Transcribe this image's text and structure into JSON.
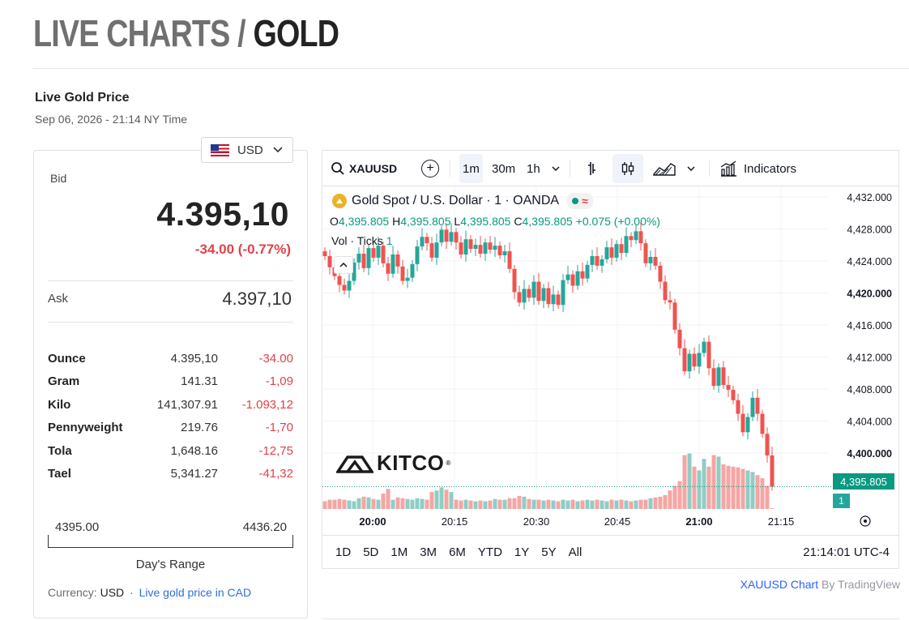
{
  "header": {
    "title_part1": "LIVE CHARTS / ",
    "title_part2": "GOLD"
  },
  "live_price": {
    "heading": "Live Gold Price",
    "timestamp": "Sep 06, 2026 - 21:14 NY Time",
    "currency_selected": "USD",
    "bid_label": "Bid",
    "bid_value": "4.395,10",
    "bid_change": "-34.00 (-0.77%)",
    "ask_label": "Ask",
    "ask_value": "4.397,10",
    "units": [
      {
        "name": "Ounce",
        "value": "4.395,10",
        "change": "-34.00"
      },
      {
        "name": "Gram",
        "value": "141.31",
        "change": "-1,09"
      },
      {
        "name": "Kilo",
        "value": "141,307.91",
        "change": "-1.093,12"
      },
      {
        "name": "Pennyweight",
        "value": "219.76",
        "change": "-1,70"
      },
      {
        "name": "Tola",
        "value": "1,648.16",
        "change": "-12,75"
      },
      {
        "name": "Tael",
        "value": "5,341.27",
        "change": "-41,32"
      }
    ],
    "day_range_low": "4395.00",
    "day_range_high": "4436.20",
    "day_range_label": "Day's Range",
    "currency_prefix": "Currency:",
    "currency_code": "USD",
    "currency_sep": "·",
    "cad_link": "Live gold price in CAD"
  },
  "chart_widget": {
    "symbol": "XAUUSD",
    "intervals": [
      "1m",
      "30m",
      "1h"
    ],
    "active_interval": "1m",
    "indicators_label": "Indicators",
    "legend_title": "Gold Spot / U.S. Dollar · 1 · OANDA",
    "ohlc": {
      "o_label": "O",
      "o": "4,395.805",
      "h_label": "H",
      "h": "4,395.805",
      "l_label": "L",
      "l": "4,395.805",
      "c_label": "C",
      "c": "4,395.805",
      "change": "+0.075 (+0.00%)"
    },
    "volume_label": "Vol · Ticks",
    "volume_value": "1",
    "watermark": "KITCO",
    "last_price_tag": "4,395.805",
    "last_volume_tag": "1",
    "ranges": [
      "1D",
      "5D",
      "1M",
      "3M",
      "6M",
      "YTD",
      "1Y",
      "5Y",
      "All"
    ],
    "clock": "21:14:01 UTC-4",
    "attribution_link": "XAUUSD Chart",
    "attribution_rest": " By TradingView",
    "colors": {
      "up": "#26a69a",
      "down": "#ef5350",
      "vol_up": "#8fcdc5",
      "vol_down": "#f4a6a3",
      "last": "#089981"
    }
  },
  "chart_data": {
    "type": "candlestick",
    "y_ticks": [
      "4,432.000",
      "4,428.000",
      "4,424.000",
      "4,420.000",
      "4,416.000",
      "4,412.000",
      "4,408.000",
      "4,404.000",
      "4,400.000"
    ],
    "y_ticks_bold": [
      "4,420.000",
      "4,400.000"
    ],
    "ylim": [
      4392,
      4433
    ],
    "x_ticks": [
      "20:00",
      "20:15",
      "20:30",
      "20:45",
      "21:00",
      "21:15"
    ],
    "x_ticks_bold": [
      "20:00",
      "21:00"
    ],
    "closes": [
      4424.6,
      4423.2,
      4422.1,
      4421.0,
      4420.3,
      4421.5,
      4423.8,
      4424.9,
      4423.1,
      4425.6,
      4424.4,
      4425.9,
      4423.7,
      4422.4,
      4424.8,
      4423.3,
      4421.5,
      4421.9,
      4423.6,
      4425.8,
      4427.0,
      4426.2,
      4424.4,
      4426.3,
      4427.9,
      4426.4,
      4427.6,
      4426.3,
      4424.8,
      4426.7,
      4425.5,
      4426.0,
      4424.9,
      4426.3,
      4425.4,
      4425.9,
      4424.7,
      4425.2,
      4423.0,
      4420.1,
      4418.8,
      4420.5,
      4419.4,
      4421.4,
      4419.0,
      4420.6,
      4418.6,
      4419.8,
      4418.5,
      4421.6,
      4422.3,
      4420.9,
      4422.7,
      4421.8,
      4423.5,
      4424.6,
      4423.4,
      4424.2,
      4425.7,
      4424.4,
      4426.1,
      4425.0,
      4427.1,
      4426.6,
      4427.7,
      4426.2,
      4423.7,
      4424.5,
      4423.4,
      4421.4,
      4419.1,
      4418.8,
      4415.4,
      4413.1,
      4410.2,
      4412.4,
      4410.8,
      4412.5,
      4413.9,
      4410.6,
      4408.4,
      4410.7,
      4408.5,
      4407.9,
      4406.6,
      4404.9,
      4402.6,
      4404.5,
      4406.9,
      4404.9,
      4402.4,
      4399.7,
      4395.805
    ],
    "volumes": [
      10,
      12,
      12,
      13,
      12,
      11,
      10,
      14,
      16,
      15,
      13,
      12,
      20,
      26,
      12,
      15,
      14,
      13,
      12,
      14,
      13,
      12,
      22,
      24,
      28,
      25,
      22,
      12,
      11,
      12,
      11,
      10,
      11,
      10,
      11,
      13,
      12,
      12,
      14,
      14,
      17,
      16,
      13,
      12,
      12,
      11,
      12,
      11,
      10,
      12,
      11,
      12,
      10,
      11,
      12,
      11,
      12,
      11,
      10,
      12,
      11,
      12,
      11,
      10,
      11,
      12,
      12,
      14,
      15,
      16,
      18,
      24,
      30,
      36,
      70,
      72,
      55,
      50,
      65,
      55,
      70,
      68,
      58,
      56,
      55,
      54,
      52,
      50,
      48,
      44,
      40,
      30,
      1
    ],
    "last_price": 4395.805
  }
}
